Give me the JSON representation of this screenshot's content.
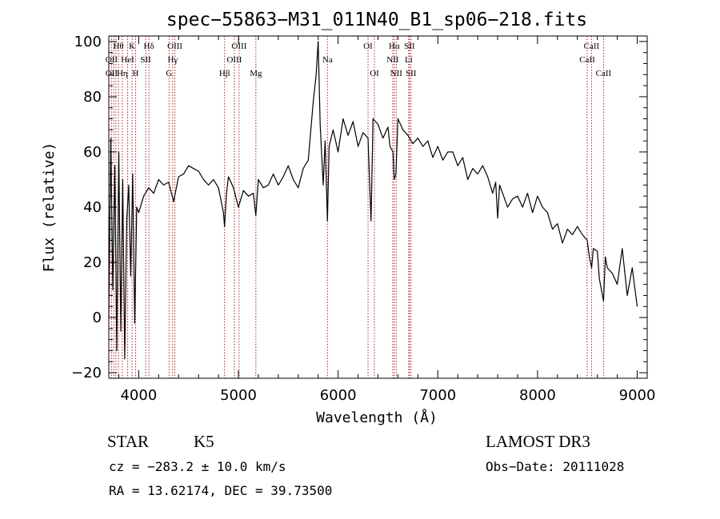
{
  "chart_data": {
    "type": "line",
    "title": "spec−55863−M31_011N40_B1_sp06−218.fits",
    "xlabel": "Wavelength (Å)",
    "ylabel": "Flux (relative)",
    "xlim": [
      3700,
      9100
    ],
    "ylim": [
      -22,
      102
    ],
    "xticks": [
      4000,
      5000,
      6000,
      7000,
      8000,
      9000
    ],
    "xtick_labels": [
      "4000",
      "5000",
      "6000",
      "7000",
      "8000",
      "9000"
    ],
    "yticks": [
      -20,
      0,
      20,
      40,
      60,
      80,
      100
    ],
    "ytick_labels": [
      "−20",
      "0",
      "20",
      "40",
      "60",
      "80",
      "100"
    ],
    "grid": false,
    "line_color": "#000000",
    "marker_color": "#b22222",
    "series": [
      {
        "x": [
          3700,
          3720,
          3740,
          3760,
          3780,
          3800,
          3820,
          3840,
          3860,
          3880,
          3900,
          3920,
          3940,
          3960,
          3980,
          4000,
          4050,
          4100,
          4150,
          4200,
          4250,
          4300,
          4350,
          4400,
          4450,
          4500,
          4550,
          4600,
          4650,
          4700,
          4750,
          4800,
          4850,
          4861,
          4880,
          4900,
          4950,
          5000,
          5050,
          5100,
          5150,
          5175,
          5200,
          5250,
          5300,
          5350,
          5400,
          5450,
          5500,
          5550,
          5600,
          5650,
          5700,
          5750,
          5780,
          5800,
          5820,
          5850,
          5870,
          5893,
          5910,
          5950,
          6000,
          6050,
          6100,
          6150,
          6200,
          6250,
          6300,
          6330,
          6350,
          6400,
          6450,
          6500,
          6520,
          6550,
          6563,
          6580,
          6600,
          6650,
          6700,
          6750,
          6800,
          6850,
          6900,
          6950,
          7000,
          7050,
          7100,
          7150,
          7200,
          7250,
          7300,
          7350,
          7400,
          7450,
          7500,
          7550,
          7580,
          7600,
          7620,
          7650,
          7700,
          7750,
          7800,
          7850,
          7900,
          7950,
          8000,
          8050,
          8100,
          8150,
          8200,
          8250,
          8300,
          8350,
          8400,
          8450,
          8498,
          8520,
          8542,
          8560,
          8600,
          8620,
          8662,
          8680,
          8700,
          8750,
          8800,
          8850,
          8900,
          8950,
          9000
        ],
        "y": [
          0,
          65,
          10,
          55,
          -12,
          60,
          -5,
          50,
          -15,
          35,
          48,
          15,
          52,
          -2,
          40,
          38,
          44,
          47,
          45,
          50,
          48,
          49,
          42,
          51,
          52,
          55,
          54,
          53,
          50,
          48,
          50,
          47,
          38,
          33,
          45,
          51,
          47,
          40,
          46,
          44,
          45,
          37,
          50,
          47,
          48,
          52,
          48,
          51,
          55,
          50,
          47,
          54,
          57,
          78,
          88,
          100,
          70,
          48,
          64,
          35,
          62,
          68,
          60,
          72,
          66,
          71,
          62,
          67,
          65,
          35,
          72,
          70,
          65,
          69,
          62,
          60,
          50,
          52,
          72,
          68,
          66,
          63,
          65,
          62,
          64,
          58,
          62,
          57,
          60,
          60,
          55,
          58,
          50,
          54,
          52,
          55,
          51,
          45,
          49,
          36,
          48,
          45,
          40,
          43,
          44,
          40,
          45,
          38,
          44,
          40,
          38,
          32,
          34,
          27,
          32,
          30,
          33,
          30,
          28,
          22,
          18,
          25,
          24,
          14,
          6,
          22,
          18,
          16,
          12,
          25,
          8,
          18,
          4
        ]
      }
    ],
    "lines": [
      {
        "label": "Hθ",
        "x": 3797,
        "row": 0
      },
      {
        "label": "OII",
        "x": 3727,
        "row": 1
      },
      {
        "label": "OII",
        "x": 3727,
        "row": 2
      },
      {
        "label": "Hη",
        "x": 3835,
        "row": 2
      },
      {
        "label": "HeI",
        "x": 3889,
        "row": 1
      },
      {
        "label": "K",
        "x": 3934,
        "row": 0
      },
      {
        "label": "SII",
        "x": 4070,
        "row": 1
      },
      {
        "label": "H",
        "x": 3969,
        "row": 2
      },
      {
        "label": "Hδ",
        "x": 4102,
        "row": 0
      },
      {
        "label": "OIII",
        "x": 4363,
        "row": 0
      },
      {
        "label": "Hγ",
        "x": 4341,
        "row": 1
      },
      {
        "label": "G",
        "x": 4305,
        "row": 2
      },
      {
        "label": "OIII",
        "x": 5007,
        "row": 0
      },
      {
        "label": "OIII",
        "x": 4959,
        "row": 1
      },
      {
        "label": "Hβ",
        "x": 4861,
        "row": 2
      },
      {
        "label": "Mg",
        "x": 5175,
        "row": 2
      },
      {
        "label": "Na",
        "x": 5893,
        "row": 1
      },
      {
        "label": "OI",
        "x": 6300,
        "row": 0
      },
      {
        "label": "OI",
        "x": 6364,
        "row": 2
      },
      {
        "label": "Hα",
        "x": 6563,
        "row": 0
      },
      {
        "label": "SII",
        "x": 6716,
        "row": 0
      },
      {
        "label": "NII",
        "x": 6548,
        "row": 1
      },
      {
        "label": "Li",
        "x": 6708,
        "row": 1
      },
      {
        "label": "NII",
        "x": 6583,
        "row": 2
      },
      {
        "label": "SII",
        "x": 6731,
        "row": 2
      },
      {
        "label": "CaII",
        "x": 8542,
        "row": 0
      },
      {
        "label": "CaII",
        "x": 8498,
        "row": 1
      },
      {
        "label": "CaII",
        "x": 8662,
        "row": 2
      }
    ],
    "extra_line_markers": [
      3750,
      3771,
      3889,
      4102
    ]
  },
  "info": {
    "object_class": "STAR",
    "subclass": "K5",
    "survey": "LAMOST DR3",
    "cz": "cz = −283.2 ± 10.0 km/s",
    "obs_date": "Obs−Date: 20111028",
    "coords": "RA =  13.62174, DEC =  39.73500"
  }
}
